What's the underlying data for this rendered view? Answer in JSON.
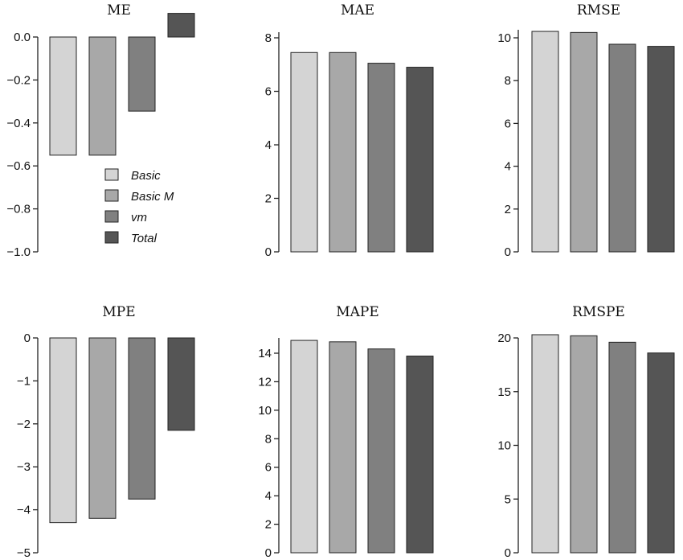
{
  "chart_data": [
    {
      "type": "bar",
      "title": "ME",
      "categories": [
        "Basic",
        "Basic M",
        "vm",
        "Total"
      ],
      "values": [
        -0.55,
        -0.55,
        -0.345,
        0.11
      ],
      "ylim": [
        -1.0,
        0.1
      ],
      "yticks": [
        0.0,
        -0.2,
        -0.4,
        -0.6,
        -0.8,
        -1.0
      ],
      "ytick_labels": [
        "0.0",
        "−0.2",
        "−0.4",
        "−0.6",
        "−0.8",
        "−1.0"
      ],
      "legend_position": "lower-left"
    },
    {
      "type": "bar",
      "title": "MAE",
      "categories": [
        "Basic",
        "Basic M",
        "vm",
        "Total"
      ],
      "values": [
        7.45,
        7.45,
        7.05,
        6.9
      ],
      "ylim": [
        0,
        8.1
      ],
      "yticks": [
        0,
        2,
        4,
        6,
        8
      ],
      "ytick_labels": [
        "0",
        "2",
        "4",
        "6",
        "8"
      ]
    },
    {
      "type": "bar",
      "title": "RMSE",
      "categories": [
        "Basic",
        "Basic M",
        "vm",
        "Total"
      ],
      "values": [
        10.3,
        10.25,
        9.7,
        9.6
      ],
      "ylim": [
        0,
        10.5
      ],
      "yticks": [
        0,
        2,
        4,
        6,
        8,
        10
      ],
      "ytick_labels": [
        "0",
        "2",
        "4",
        "6",
        "8",
        "10"
      ]
    },
    {
      "type": "bar",
      "title": "MPE",
      "categories": [
        "Basic",
        "Basic M",
        "vm",
        "Total"
      ],
      "values": [
        -4.3,
        -4.2,
        -3.75,
        -2.15
      ],
      "ylim": [
        -5,
        0
      ],
      "yticks": [
        0,
        -1,
        -2,
        -3,
        -4,
        -5
      ],
      "ytick_labels": [
        "0",
        "−1",
        "−2",
        "−3",
        "−4",
        "−5"
      ]
    },
    {
      "type": "bar",
      "title": "MAPE",
      "categories": [
        "Basic",
        "Basic M",
        "vm",
        "Total"
      ],
      "values": [
        14.9,
        14.8,
        14.3,
        13.8
      ],
      "ylim": [
        0,
        15.0
      ],
      "yticks": [
        0,
        2,
        4,
        6,
        8,
        10,
        12,
        14
      ],
      "ytick_labels": [
        "0",
        "2",
        "4",
        "6",
        "8",
        "10",
        "12",
        "14"
      ]
    },
    {
      "type": "bar",
      "title": "RMSPE",
      "categories": [
        "Basic",
        "Basic M",
        "vm",
        "Total"
      ],
      "values": [
        20.3,
        20.2,
        19.6,
        18.6
      ],
      "ylim": [
        0,
        20.4
      ],
      "yticks": [
        0,
        5,
        10,
        15,
        20
      ],
      "ytick_labels": [
        "0",
        "5",
        "10",
        "15",
        "20"
      ]
    }
  ],
  "legend": {
    "entries": [
      "Basic",
      "Basic M",
      "vm",
      "Total"
    ]
  },
  "colors": {
    "series": [
      "#d4d4d4",
      "#a8a8a8",
      "#808080",
      "#555555"
    ],
    "axis": "#222222"
  }
}
